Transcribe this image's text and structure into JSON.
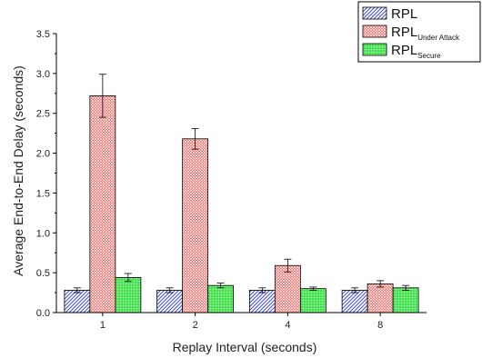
{
  "chart_data": {
    "type": "bar",
    "xlabel": "Replay Interval (seconds)",
    "ylabel": "Average End-to-End Delay (seconds)",
    "ylim": [
      0,
      3.5
    ],
    "yticks": [
      "0.0",
      "0.5",
      "1.0",
      "1.5",
      "2.0",
      "2.5",
      "3.0",
      "3.5"
    ],
    "categories": [
      "1",
      "2",
      "4",
      "8"
    ],
    "grid": false,
    "legend_position": "top-right",
    "series": [
      {
        "name": "RPL",
        "name_main": "RPL",
        "name_sub": "",
        "pattern": "diagonal-hatch",
        "color": "#4a55c8",
        "values": [
          0.28,
          0.28,
          0.28,
          0.28
        ],
        "errors": [
          0.03,
          0.03,
          0.03,
          0.03
        ]
      },
      {
        "name": "RPLUnder Attack",
        "name_main": "RPL",
        "name_sub": "Under Attack",
        "pattern": "cross-hatch",
        "color": "#e8443f",
        "values": [
          2.72,
          2.18,
          0.59,
          0.36
        ],
        "errors": [
          0.27,
          0.13,
          0.08,
          0.04
        ]
      },
      {
        "name": "RPLSecure",
        "name_main": "RPL",
        "name_sub": "Secure",
        "pattern": "grid",
        "color": "#3fe04a",
        "values": [
          0.44,
          0.34,
          0.3,
          0.31
        ],
        "errors": [
          0.05,
          0.03,
          0.02,
          0.03
        ]
      }
    ]
  }
}
